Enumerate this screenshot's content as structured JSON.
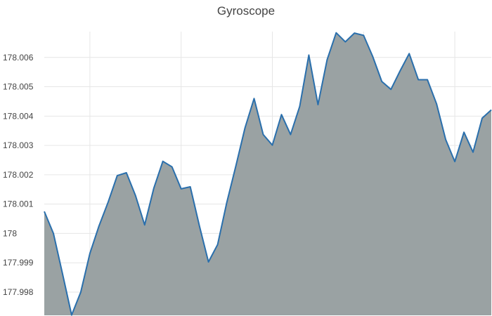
{
  "chart_data": {
    "type": "area",
    "title": "Gyroscope",
    "xlabel": "",
    "ylabel": "",
    "ylim": [
      177.99721,
      178.00688
    ],
    "grid": true,
    "legend": "none",
    "y_ticks": [
      {
        "value": 177.998,
        "label": "177.998"
      },
      {
        "value": 177.999,
        "label": "177.999"
      },
      {
        "value": 178.0,
        "label": "178"
      },
      {
        "value": 178.001,
        "label": "178.001"
      },
      {
        "value": 178.002,
        "label": "178.002"
      },
      {
        "value": 178.003,
        "label": "178.003"
      },
      {
        "value": 178.004,
        "label": "178.004"
      },
      {
        "value": 178.005,
        "label": "178.005"
      },
      {
        "value": 178.006,
        "label": "178.006"
      }
    ],
    "x_gridlines": [
      6,
      16,
      26,
      36,
      46
    ],
    "x": [
      1,
      2,
      3,
      4,
      5,
      6,
      7,
      8,
      9,
      10,
      11,
      12,
      13,
      14,
      15,
      16,
      17,
      18,
      19,
      20,
      21,
      22,
      23,
      24,
      25,
      26,
      27,
      28,
      29,
      30,
      31,
      32,
      33,
      34,
      35,
      36,
      37,
      38,
      39,
      40,
      41,
      42,
      43,
      44,
      45,
      46,
      47,
      48,
      49,
      50
    ],
    "values": [
      178.00075,
      178.0,
      177.99862,
      177.99722,
      177.998,
      177.99932,
      178.00026,
      178.00107,
      178.00197,
      178.00207,
      178.00129,
      178.00029,
      178.00154,
      178.00246,
      178.00227,
      178.00152,
      178.00159,
      178.00026,
      177.99903,
      177.99962,
      178.00105,
      178.0023,
      178.0036,
      178.0046,
      178.00337,
      178.00301,
      178.00405,
      178.00337,
      178.00433,
      178.00608,
      178.00439,
      178.00592,
      178.00684,
      178.00653,
      178.00683,
      178.00675,
      178.00603,
      178.00518,
      178.00491,
      178.00554,
      178.00613,
      178.00524,
      178.00524,
      178.00442,
      178.0032,
      178.00245,
      178.00345,
      178.00277,
      178.00393,
      178.00421
    ],
    "colors": {
      "line": "#2a6fac",
      "fill": "#9aa2a3",
      "grid": "#e6e6e6",
      "text": "#444444"
    }
  }
}
